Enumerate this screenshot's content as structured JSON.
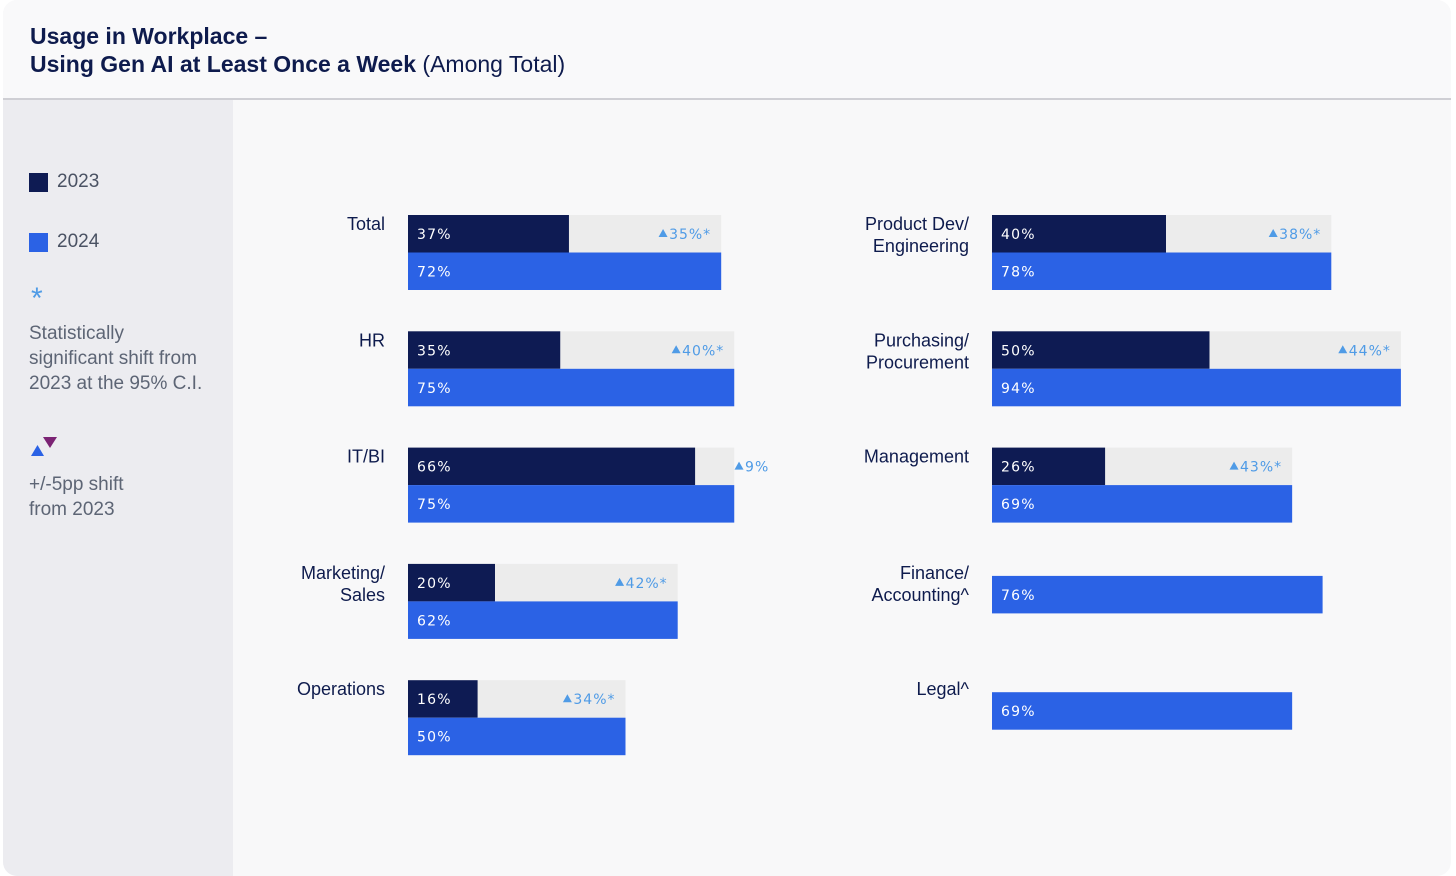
{
  "title": {
    "line1": "Usage in Workplace –",
    "line2_bold": "Using Gen AI at Least Once a Week",
    "line2_light": "(Among Total)"
  },
  "legend": {
    "y2023": "2023",
    "y2024": "2024",
    "star_symbol": "*",
    "sig_line1": "Statistically",
    "sig_line2": "significant shift from",
    "sig_line3": "2023 at the 95% C.I.",
    "arrows_line1": "+/-5pp shift",
    "arrows_line2": "from 2023"
  },
  "colors": {
    "y2023": "#0e1b53",
    "y2024": "#2b62e5",
    "gap": "#ececec",
    "delta": "#4f9be6",
    "arrow_down": "#7b2374",
    "label": "#0e1b4d"
  },
  "chart_data": {
    "type": "bar",
    "orientation": "horizontal",
    "title": "Usage in Workplace – Using Gen AI at Least Once a Week (Among Total)",
    "series": [
      {
        "name": "2023"
      },
      {
        "name": "2024"
      }
    ],
    "categories": [
      {
        "name": "Total",
        "lines": [
          "Total"
        ],
        "col": 0,
        "row": 0,
        "v2023": 37,
        "v2024": 72,
        "delta": "35%*"
      },
      {
        "name": "HR",
        "lines": [
          "HR"
        ],
        "col": 0,
        "row": 1,
        "v2023": 35,
        "v2024": 75,
        "delta": "40%*"
      },
      {
        "name": "IT/BI",
        "lines": [
          "IT/BI"
        ],
        "col": 0,
        "row": 2,
        "v2023": 66,
        "v2024": 75,
        "delta": "9%"
      },
      {
        "name": "Marketing/ Sales",
        "lines": [
          "Marketing/",
          "Sales"
        ],
        "col": 0,
        "row": 3,
        "v2023": 20,
        "v2024": 62,
        "delta": "42%*"
      },
      {
        "name": "Operations",
        "lines": [
          "Operations"
        ],
        "col": 0,
        "row": 4,
        "v2023": 16,
        "v2024": 50,
        "delta": "34%*"
      },
      {
        "name": "Product Dev/ Engineering",
        "lines": [
          "Product Dev/",
          "Engineering"
        ],
        "col": 1,
        "row": 0,
        "v2023": 40,
        "v2024": 78,
        "delta": "38%*"
      },
      {
        "name": "Purchasing/ Procurement",
        "lines": [
          "Purchasing/",
          "Procurement"
        ],
        "col": 1,
        "row": 1,
        "v2023": 50,
        "v2024": 94,
        "delta": "44%*"
      },
      {
        "name": "Management",
        "lines": [
          "Management"
        ],
        "col": 1,
        "row": 2,
        "v2023": 26,
        "v2024": 69,
        "delta": "43%*"
      },
      {
        "name": "Finance/ Accounting^",
        "lines": [
          "Finance/",
          "Accounting^"
        ],
        "col": 1,
        "row": 3,
        "v2023": null,
        "v2024": 76,
        "delta": null
      },
      {
        "name": "Legal^",
        "lines": [
          "Legal^"
        ],
        "col": 1,
        "row": 4,
        "v2023": null,
        "v2024": 69,
        "delta": null
      }
    ],
    "xlim": [
      0,
      100
    ],
    "unit": "%"
  }
}
